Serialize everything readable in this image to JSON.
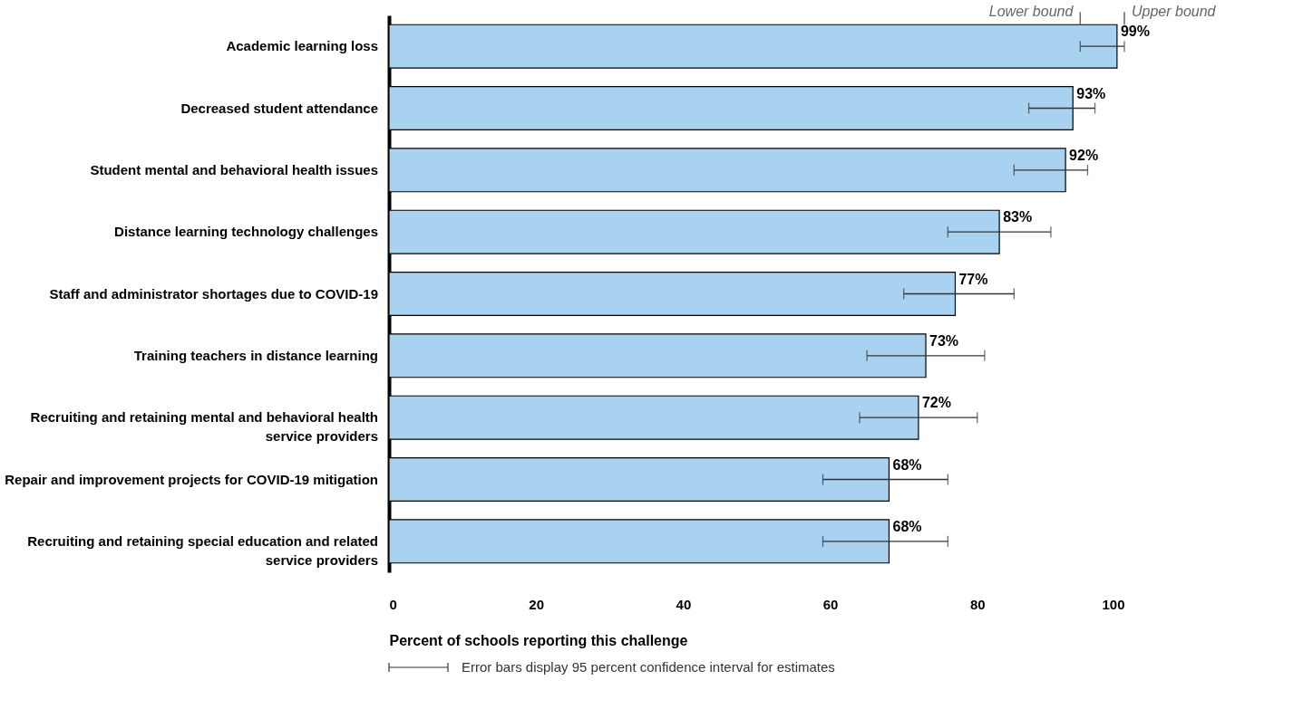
{
  "chart_data": {
    "type": "bar",
    "orientation": "horizontal",
    "categories": [
      "Academic learning loss",
      "Decreased student attendance",
      "Student mental and behavioral health issues",
      "Distance learning technology challenges",
      "Staff and administrator shortages due to COVID-19",
      "Training teachers in distance learning",
      "Recruiting and retaining mental and behavioral health service providers",
      "Repair and improvement projects for COVID-19 mitigation",
      "Recruiting and retaining special education and related service providers"
    ],
    "values": [
      99,
      93,
      92,
      83,
      77,
      73,
      72,
      68,
      68
    ],
    "value_labels": [
      "99%",
      "93%",
      "92%",
      "83%",
      "77%",
      "73%",
      "72%",
      "68%",
      "68%"
    ],
    "errors": [
      [
        94,
        100
      ],
      [
        87,
        96
      ],
      [
        85,
        95
      ],
      [
        76,
        90
      ],
      [
        70,
        85
      ],
      [
        65,
        81
      ],
      [
        64,
        80
      ],
      [
        59,
        76
      ],
      [
        59,
        76
      ]
    ],
    "color": "#a9d1f0",
    "xlim": [
      0,
      100
    ],
    "xticks": [
      0,
      20,
      40,
      60,
      80,
      100
    ],
    "xlabel": "Percent of schools reporting this challenge",
    "grid": false,
    "annotations": [
      {
        "text": "Lower bound",
        "x": 94,
        "y": "Academic learning loss"
      },
      {
        "text": "Upper bound",
        "x": 100,
        "y": "Academic learning loss"
      },
      "Error bars display 95 percent confidence interval for estimates"
    ]
  }
}
